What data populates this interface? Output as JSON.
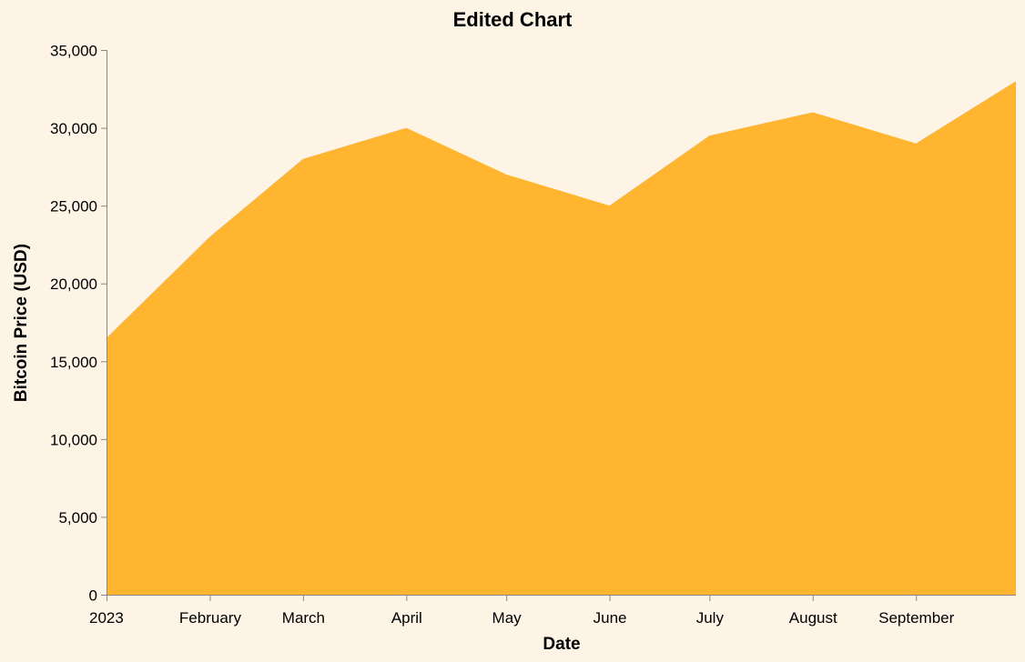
{
  "chart_data": {
    "type": "area",
    "title": "Edited Chart",
    "xlabel": "Date",
    "ylabel": "Bitcoin Price (USD)",
    "x": [
      "2023-01-01",
      "2023-02-01",
      "2023-03-01",
      "2023-04-01",
      "2023-05-01",
      "2023-06-01",
      "2023-07-01",
      "2023-08-01",
      "2023-09-01",
      "2023-10-01"
    ],
    "values": [
      16500,
      23000,
      28000,
      30000,
      27000,
      25000,
      29500,
      31000,
      29000,
      33000
    ],
    "xlim": [
      "2023-01-01",
      "2023-10-01"
    ],
    "ylim": [
      0,
      35000
    ],
    "x_ticks": [
      {
        "date": "2023-01-01",
        "label": "2023"
      },
      {
        "date": "2023-02-01",
        "label": "February"
      },
      {
        "date": "2023-03-01",
        "label": "March"
      },
      {
        "date": "2023-04-01",
        "label": "April"
      },
      {
        "date": "2023-05-01",
        "label": "May"
      },
      {
        "date": "2023-06-01",
        "label": "June"
      },
      {
        "date": "2023-07-01",
        "label": "July"
      },
      {
        "date": "2023-08-01",
        "label": "August"
      },
      {
        "date": "2023-09-01",
        "label": "September"
      }
    ],
    "y_ticks": [
      {
        "value": 0,
        "label": "0"
      },
      {
        "value": 5000,
        "label": "5,000"
      },
      {
        "value": 10000,
        "label": "10,000"
      },
      {
        "value": 15000,
        "label": "15,000"
      },
      {
        "value": 20000,
        "label": "20,000"
      },
      {
        "value": 25000,
        "label": "25,000"
      },
      {
        "value": 30000,
        "label": "30,000"
      },
      {
        "value": 35000,
        "label": "35,000"
      }
    ],
    "grid": false,
    "colors": {
      "area": "#ffb52f",
      "background": "#fdf4e6",
      "axis": "#888888"
    }
  }
}
